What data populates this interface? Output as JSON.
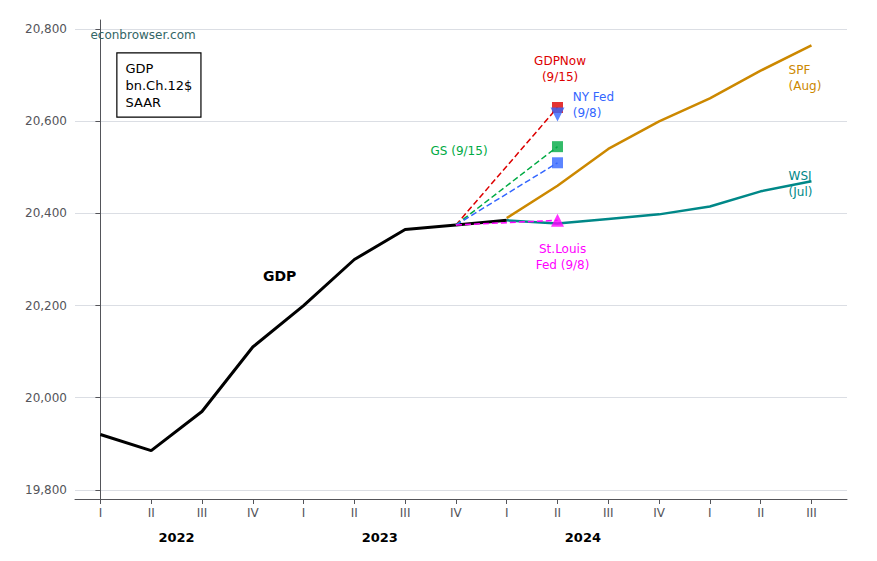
{
  "chart_data": {
    "type": "line",
    "xlim": [
      -0.5,
      14.7
    ],
    "xticks": [
      {
        "value": 0,
        "label": "I"
      },
      {
        "value": 1,
        "label": "II"
      },
      {
        "value": 2,
        "label": "III"
      },
      {
        "value": 3,
        "label": "IV"
      },
      {
        "value": 4,
        "label": "I"
      },
      {
        "value": 5,
        "label": "II"
      },
      {
        "value": 6,
        "label": "III"
      },
      {
        "value": 7,
        "label": "IV"
      },
      {
        "value": 8,
        "label": "I"
      },
      {
        "value": 9,
        "label": "II"
      },
      {
        "value": 10,
        "label": "III"
      },
      {
        "value": 11,
        "label": "IV"
      },
      {
        "value": 12,
        "label": "I"
      },
      {
        "value": 13,
        "label": "II"
      },
      {
        "value": 14,
        "label": "III"
      }
    ],
    "ylim": [
      19780,
      20820
    ],
    "yticks": [
      {
        "value": 19800,
        "label": "19,800"
      },
      {
        "value": 20000,
        "label": "20,000"
      },
      {
        "value": 20200,
        "label": "20,200"
      },
      {
        "value": 20400,
        "label": "20,400"
      },
      {
        "value": 20600,
        "label": "20,600"
      },
      {
        "value": 20800,
        "label": "20,800"
      }
    ],
    "grid": true,
    "series": [
      {
        "type": "line",
        "color": "#000000",
        "line_style": "solid",
        "x": [
          0,
          1,
          2,
          3,
          4,
          5,
          6,
          7,
          8
        ],
        "values": [
          19920,
          19885,
          19970,
          20110,
          20200,
          20300,
          20365,
          20375,
          20385
        ]
      },
      {
        "type": "line",
        "color": "#cc8800",
        "line_style": "solid",
        "x": [
          8,
          9,
          10,
          11,
          12,
          13,
          14
        ],
        "values": [
          20390,
          20460,
          20540,
          20600,
          20650,
          20710,
          20765
        ]
      },
      {
        "type": "line",
        "color": "#008888",
        "line_style": "solid",
        "x": [
          8,
          9,
          10,
          11,
          12,
          13,
          14
        ],
        "values": [
          20385,
          20378,
          20388,
          20398,
          20415,
          20448,
          20470
        ]
      },
      {
        "type": "line",
        "color": "#dd0000",
        "line_style": "dashed",
        "x": [
          7,
          9
        ],
        "values": [
          20375,
          20630
        ]
      },
      {
        "type": "scatter",
        "color": "#dd0000",
        "marker": "square",
        "x": [
          9
        ],
        "values": [
          20630
        ]
      },
      {
        "type": "line",
        "color": "#00aa44",
        "line_style": "dashed",
        "x": [
          7,
          9
        ],
        "values": [
          20375,
          20545
        ]
      },
      {
        "type": "scatter",
        "color": "#00aa44",
        "marker": "square",
        "x": [
          9
        ],
        "values": [
          20545
        ]
      },
      {
        "type": "line",
        "color": "#3366ff",
        "line_style": "dashed",
        "x": [
          7,
          9
        ],
        "values": [
          20375,
          20510
        ]
      },
      {
        "type": "scatter",
        "color": "#3366ff",
        "marker": "square",
        "x": [
          9
        ],
        "values": [
          20510
        ]
      },
      {
        "type": "scatter",
        "color": "#3366ff",
        "marker": "triangle_down",
        "x": [
          9
        ],
        "values": [
          20615
        ]
      },
      {
        "type": "line",
        "color": "#ff00ff",
        "line_style": "dashed",
        "x": [
          7,
          9
        ],
        "values": [
          20375,
          20385
        ]
      },
      {
        "type": "scatter",
        "color": "#ff00ff",
        "marker": "triangle",
        "x": [
          9
        ],
        "values": [
          20385
        ]
      }
    ],
    "annotations": [
      {
        "text": "econbrowser.com",
        "color": "#336666"
      },
      {
        "text": "GDP\nbn.Ch.12$\nSAAR",
        "color": "#000000"
      },
      {
        "text": "GDP",
        "x": 3.2,
        "y": 20265,
        "color": "#000000"
      },
      {
        "text": "GDPNow\n(9/15)",
        "x": 9.05,
        "y": 20670,
        "color": "#dd0000"
      },
      {
        "text": "GS (9/15)",
        "x": 6.5,
        "y": 20535,
        "color": "#00aa44"
      },
      {
        "text": "NY Fed\n(9/8)",
        "x": 9.3,
        "y": 20635,
        "color": "#3366ff"
      },
      {
        "text": "SPF\n(Aug)",
        "x": 13.55,
        "y": 20695,
        "color": "#cc8800"
      },
      {
        "text": "WSJ\n(Jul)",
        "x": 13.55,
        "y": 20465,
        "color": "#008888"
      },
      {
        "text": "St.Louis\nFed (9/8)",
        "x": 9.1,
        "y": 20340,
        "color": "#ff00ff"
      },
      {
        "text": "2022",
        "x": 1.5
      },
      {
        "text": "2023",
        "x": 5.5
      },
      {
        "text": "2024",
        "x": 9.5
      }
    ]
  }
}
